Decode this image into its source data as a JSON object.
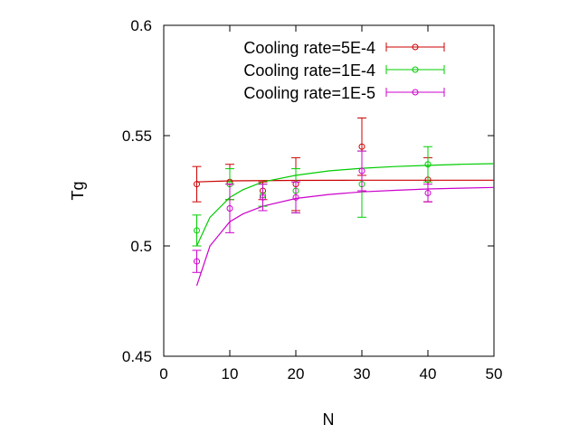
{
  "chart_data": {
    "type": "scatter",
    "xlabel": "N",
    "ylabel": "Tg",
    "xlim": [
      0,
      50
    ],
    "ylim": [
      0.45,
      0.6
    ],
    "xticks": [
      "0",
      "10",
      "20",
      "30",
      "40",
      "50"
    ],
    "yticks": [
      "0.45",
      "0.5",
      "0.55",
      "0.6"
    ],
    "legend_position": "top-right",
    "series": [
      {
        "name": "Cooling rate=5E-4",
        "color": "#cc0000",
        "points": [
          {
            "x": 5,
            "y": 0.528,
            "err": 0.008
          },
          {
            "x": 10,
            "y": 0.529,
            "err": 0.008
          },
          {
            "x": 15,
            "y": 0.525,
            "err": 0.004
          },
          {
            "x": 20,
            "y": 0.528,
            "err": 0.012
          },
          {
            "x": 30,
            "y": 0.545,
            "err": 0.013
          },
          {
            "x": 40,
            "y": 0.53,
            "err": 0.01
          }
        ],
        "fit": [
          [
            5,
            0.529
          ],
          [
            10,
            0.5295
          ],
          [
            20,
            0.5297
          ],
          [
            30,
            0.5298
          ],
          [
            40,
            0.5298
          ],
          [
            50,
            0.5298
          ]
        ]
      },
      {
        "name": "Cooling rate=1E-4",
        "color": "#00cc00",
        "points": [
          {
            "x": 5,
            "y": 0.507,
            "err": 0.007
          },
          {
            "x": 10,
            "y": 0.528,
            "err": 0.007
          },
          {
            "x": 15,
            "y": 0.523,
            "err": 0.005
          },
          {
            "x": 20,
            "y": 0.525,
            "err": 0.01
          },
          {
            "x": 30,
            "y": 0.528,
            "err": 0.015
          },
          {
            "x": 40,
            "y": 0.537,
            "err": 0.008
          }
        ],
        "fit": [
          [
            5,
            0.5
          ],
          [
            7,
            0.513
          ],
          [
            10,
            0.522
          ],
          [
            12,
            0.5255
          ],
          [
            15,
            0.529
          ],
          [
            20,
            0.532
          ],
          [
            25,
            0.534
          ],
          [
            30,
            0.5352
          ],
          [
            35,
            0.536
          ],
          [
            40,
            0.5365
          ],
          [
            45,
            0.537
          ],
          [
            50,
            0.5373
          ]
        ]
      },
      {
        "name": "Cooling rate=1E-5",
        "color": "#cc00cc",
        "points": [
          {
            "x": 5,
            "y": 0.493,
            "err": 0.005
          },
          {
            "x": 10,
            "y": 0.517,
            "err": 0.011
          },
          {
            "x": 15,
            "y": 0.522,
            "err": 0.006
          },
          {
            "x": 20,
            "y": 0.522,
            "err": 0.007
          },
          {
            "x": 30,
            "y": 0.534,
            "err": 0.009
          },
          {
            "x": 40,
            "y": 0.524,
            "err": 0.004
          }
        ],
        "fit": [
          [
            5,
            0.482
          ],
          [
            7,
            0.5
          ],
          [
            10,
            0.511
          ],
          [
            12,
            0.5145
          ],
          [
            15,
            0.518
          ],
          [
            20,
            0.5215
          ],
          [
            25,
            0.5233
          ],
          [
            30,
            0.5245
          ],
          [
            35,
            0.5252
          ],
          [
            40,
            0.5258
          ],
          [
            45,
            0.5262
          ],
          [
            50,
            0.5265
          ]
        ]
      }
    ]
  }
}
